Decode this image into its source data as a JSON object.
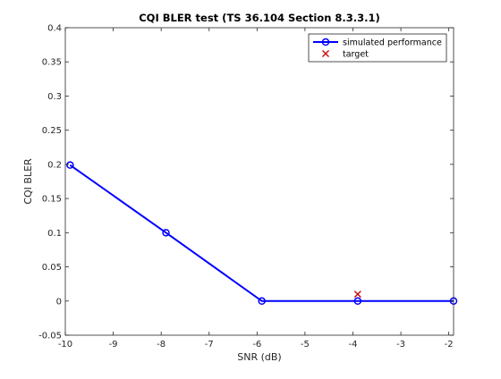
{
  "chart_data": {
    "type": "line",
    "title": "CQI BLER test (TS 36.104 Section 8.3.3.1)",
    "xlabel": "SNR (dB)",
    "ylabel": "CQI BLER",
    "xlim": [
      -10,
      -1.9
    ],
    "ylim": [
      -0.05,
      0.4
    ],
    "xticks": [
      -10,
      -9,
      -8,
      -7,
      -6,
      -5,
      -4,
      -3,
      -2
    ],
    "xtick_labels": [
      "-10",
      "-9",
      "-8",
      "-7",
      "-6",
      "-5",
      "-4",
      "-3",
      "-2"
    ],
    "yticks": [
      -0.05,
      0,
      0.05,
      0.1,
      0.15,
      0.2,
      0.25,
      0.3,
      0.35,
      0.4
    ],
    "ytick_labels": [
      "-0.05",
      "0",
      "0.05",
      "0.1",
      "0.15",
      "0.2",
      "0.25",
      "0.3",
      "0.35",
      "0.4"
    ],
    "grid": false,
    "legend_position": "top-right",
    "series": [
      {
        "name": "simulated performance",
        "kind": "line-marker",
        "marker": "circle",
        "color": "#0000ff",
        "x": [
          -9.9,
          -7.9,
          -5.9,
          -3.9,
          -1.9
        ],
        "y": [
          0.199,
          0.1,
          0.0,
          0.0,
          0.0
        ]
      },
      {
        "name": "target",
        "kind": "marker-only",
        "marker": "x",
        "color": "#cc0000",
        "x": [
          -3.9
        ],
        "y": [
          0.01
        ]
      }
    ]
  }
}
